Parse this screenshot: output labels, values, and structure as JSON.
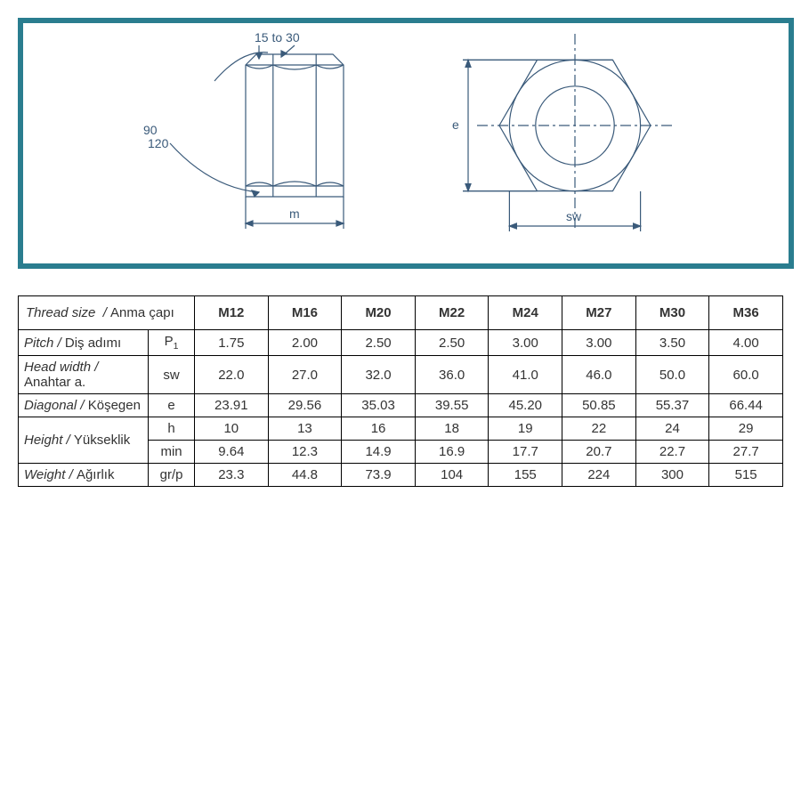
{
  "frame": {
    "border_color": "#2a7d8f"
  },
  "diagram": {
    "chamfer_label": "15  to  30",
    "angle_top": "90",
    "angle_bot": "120",
    "m_label": "m",
    "e_label": "e",
    "sw_label": "sw",
    "line_color": "#3a5a7a",
    "text_color": "#3a5a7a"
  },
  "table": {
    "header_label_en": "Thread size",
    "header_label_tr": "Anma çapı",
    "columns": [
      "M12",
      "M16",
      "M20",
      "M22",
      "M24",
      "M27",
      "M30",
      "M36"
    ],
    "rows": [
      {
        "en": "Pitch",
        "tr": "Diş adımı",
        "sym": "P1",
        "sub": true,
        "vals": [
          "1.75",
          "2.00",
          "2.50",
          "2.50",
          "3.00",
          "3.00",
          "3.50",
          "4.00"
        ]
      },
      {
        "en": "Head width",
        "tr": "Anahtar a.",
        "sym": "sw",
        "vals": [
          "22.0",
          "27.0",
          "32.0",
          "36.0",
          "41.0",
          "46.0",
          "50.0",
          "60.0"
        ]
      },
      {
        "en": "Diagonal",
        "tr": "Köşegen",
        "sym": "e",
        "vals": [
          "23.91",
          "29.56",
          "35.03",
          "39.55",
          "45.20",
          "50.85",
          "55.37",
          "66.44"
        ]
      },
      {
        "en": "Height",
        "tr": "Yükseklik",
        "sym": "h",
        "rowspan_label": 2,
        "vals": [
          "10",
          "13",
          "16",
          "18",
          "19",
          "22",
          "24",
          "29"
        ]
      },
      {
        "sym": "min",
        "vals": [
          "9.64",
          "12.3",
          "14.9",
          "16.9",
          "17.7",
          "20.7",
          "22.7",
          "27.7"
        ]
      },
      {
        "en": "Weight",
        "tr": "Ağırlık",
        "sym": "gr/p",
        "vals": [
          "23.3",
          "44.8",
          "73.9",
          "104",
          "155",
          "224",
          "300",
          "515"
        ]
      }
    ],
    "col_widths": {
      "label": 160,
      "sym": 44,
      "data": 82
    }
  }
}
